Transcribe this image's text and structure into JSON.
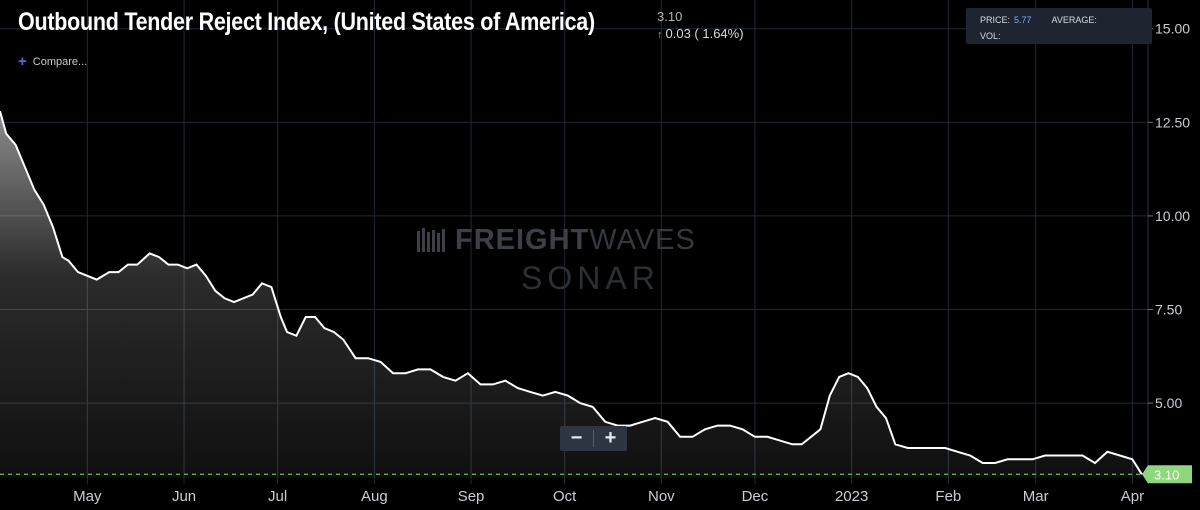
{
  "header": {
    "title": "Outbound Tender Reject Index, (United States of America)",
    "last_value": "3.10",
    "change": "0.03 ( 1.64%)",
    "compare_label": "Compare..."
  },
  "info_box": {
    "price_label": "PRICE:",
    "price_value": "5.77",
    "average_label": "AVERAGE:",
    "vol_label": "VOL:"
  },
  "watermark": {
    "line1_bold": "FREIGHT",
    "line1_light": "WAVES",
    "line2": "SONAR"
  },
  "zoom": {
    "minus": "−",
    "plus": "+"
  },
  "colors": {
    "background": "#000000",
    "line": "#ffffff",
    "grid": "#1f2a35",
    "last_value_badge": "#8fd77c",
    "baseline_dash": "#8fd77c"
  },
  "chart_data": {
    "type": "area",
    "title": "Outbound Tender Reject Index, (United States of America)",
    "ylim": [
      3.0,
      15.5
    ],
    "yticks": [
      5.0,
      7.5,
      10.0,
      12.5,
      15.0
    ],
    "ytick_labels": [
      "5.00",
      "7.50",
      "10.00",
      "12.50",
      "15.00"
    ],
    "xtick_labels": [
      "May",
      "Jun",
      "Jul",
      "Aug",
      "Sep",
      "Oct",
      "Nov",
      "Dec",
      "2023",
      "Feb",
      "Mar",
      "Apr"
    ],
    "xtick_dates": [
      "2022-05-01",
      "2022-06-01",
      "2022-07-01",
      "2022-08-01",
      "2022-09-01",
      "2022-10-01",
      "2022-11-01",
      "2022-12-01",
      "2023-01-01",
      "2023-02-01",
      "2023-03-01",
      "2023-04-01"
    ],
    "xlim": [
      "2022-04-03",
      "2023-04-06"
    ],
    "last_value": 3.1,
    "last_value_label": "3.10",
    "series": [
      {
        "x": [
          "2022-04-03",
          "2022-04-05",
          "2022-04-08",
          "2022-04-11",
          "2022-04-14",
          "2022-04-17",
          "2022-04-20",
          "2022-04-23",
          "2022-04-25",
          "2022-04-28",
          "2022-05-01",
          "2022-05-04",
          "2022-05-08",
          "2022-05-11",
          "2022-05-14",
          "2022-05-17",
          "2022-05-21",
          "2022-05-24",
          "2022-05-27",
          "2022-05-30",
          "2022-06-02",
          "2022-06-05",
          "2022-06-08",
          "2022-06-11",
          "2022-06-14",
          "2022-06-17",
          "2022-06-20",
          "2022-06-23",
          "2022-06-26",
          "2022-06-29",
          "2022-07-02",
          "2022-07-04",
          "2022-07-07",
          "2022-07-10",
          "2022-07-13",
          "2022-07-16",
          "2022-07-19",
          "2022-07-22",
          "2022-07-26",
          "2022-07-30",
          "2022-08-03",
          "2022-08-07",
          "2022-08-11",
          "2022-08-15",
          "2022-08-19",
          "2022-08-23",
          "2022-08-27",
          "2022-08-31",
          "2022-09-04",
          "2022-09-08",
          "2022-09-12",
          "2022-09-16",
          "2022-09-20",
          "2022-09-24",
          "2022-09-28",
          "2022-10-02",
          "2022-10-06",
          "2022-10-10",
          "2022-10-14",
          "2022-10-18",
          "2022-10-22",
          "2022-10-26",
          "2022-10-30",
          "2022-11-03",
          "2022-11-07",
          "2022-11-11",
          "2022-11-15",
          "2022-11-19",
          "2022-11-23",
          "2022-11-27",
          "2022-12-01",
          "2022-12-05",
          "2022-12-09",
          "2022-12-13",
          "2022-12-16",
          "2022-12-19",
          "2022-12-22",
          "2022-12-25",
          "2022-12-28",
          "2022-12-31",
          "2023-01-03",
          "2023-01-06",
          "2023-01-09",
          "2023-01-12",
          "2023-01-15",
          "2023-01-19",
          "2023-01-23",
          "2023-01-27",
          "2023-01-31",
          "2023-02-04",
          "2023-02-08",
          "2023-02-12",
          "2023-02-16",
          "2023-02-20",
          "2023-02-24",
          "2023-02-28",
          "2023-03-04",
          "2023-03-08",
          "2023-03-12",
          "2023-03-16",
          "2023-03-20",
          "2023-03-24",
          "2023-03-28",
          "2023-04-01",
          "2023-04-04"
        ],
        "y": [
          12.8,
          12.2,
          11.9,
          11.3,
          10.7,
          10.3,
          9.7,
          8.9,
          8.8,
          8.5,
          8.4,
          8.3,
          8.5,
          8.5,
          8.7,
          8.7,
          9.0,
          8.9,
          8.7,
          8.7,
          8.6,
          8.7,
          8.4,
          8.0,
          7.8,
          7.7,
          7.8,
          7.9,
          8.2,
          8.1,
          7.3,
          6.9,
          6.8,
          7.3,
          7.3,
          7.0,
          6.9,
          6.7,
          6.2,
          6.2,
          6.1,
          5.8,
          5.8,
          5.9,
          5.9,
          5.7,
          5.6,
          5.8,
          5.5,
          5.5,
          5.6,
          5.4,
          5.3,
          5.2,
          5.3,
          5.2,
          5.0,
          4.9,
          4.5,
          4.4,
          4.4,
          4.5,
          4.6,
          4.5,
          4.1,
          4.1,
          4.3,
          4.4,
          4.4,
          4.3,
          4.1,
          4.1,
          4.0,
          3.9,
          3.9,
          4.1,
          4.3,
          5.2,
          5.7,
          5.8,
          5.7,
          5.4,
          4.9,
          4.6,
          3.9,
          3.8,
          3.8,
          3.8,
          3.8,
          3.7,
          3.6,
          3.4,
          3.4,
          3.5,
          3.5,
          3.5,
          3.6,
          3.6,
          3.6,
          3.6,
          3.4,
          3.7,
          3.6,
          3.5,
          3.1
        ]
      }
    ]
  }
}
